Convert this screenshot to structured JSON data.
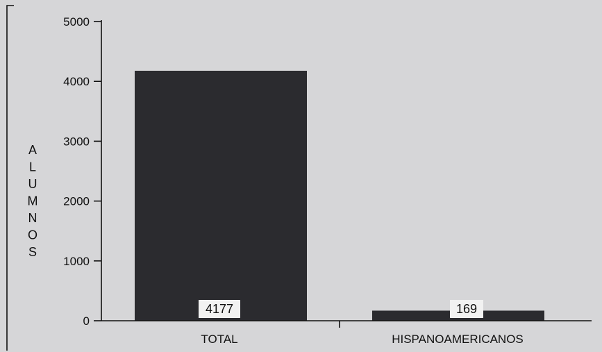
{
  "chart_data": {
    "type": "bar",
    "categories": [
      "TOTAL",
      "HISPANOAMERICANOS"
    ],
    "values": [
      4177,
      169
    ],
    "value_labels": [
      "4177",
      "169"
    ],
    "title": "",
    "xlabel": "",
    "ylabel": "ALUMNOS",
    "ylim": [
      0,
      5000
    ],
    "yticks": [
      "0",
      "1000",
      "2000",
      "3000",
      "4000",
      "5000"
    ],
    "grid": false,
    "bar_color": "#2b2b2f",
    "label_box_color": "#f2f2f2"
  }
}
